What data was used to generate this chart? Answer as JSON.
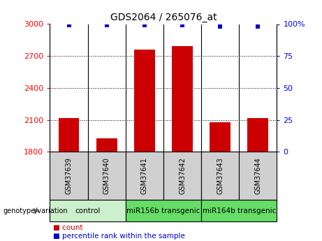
{
  "title": "GDS2064 / 265076_at",
  "samples": [
    "GSM37639",
    "GSM37640",
    "GSM37641",
    "GSM37642",
    "GSM37643",
    "GSM37644"
  ],
  "counts": [
    2120,
    1930,
    2760,
    2790,
    2080,
    2120
  ],
  "percentiles": [
    99,
    99,
    99,
    99,
    98,
    98
  ],
  "ymin": 1800,
  "ymax": 3000,
  "yticks_left": [
    1800,
    2100,
    2400,
    2700,
    3000
  ],
  "yticks_right_vals": [
    0,
    25,
    50,
    75,
    100
  ],
  "yticks_right_labels": [
    "0",
    "25",
    "50",
    "75",
    "100%"
  ],
  "bar_color": "#cc0000",
  "dot_color": "#0000cc",
  "groups": [
    {
      "label": "control",
      "start": 0,
      "end": 2,
      "color": "#ccf0cc"
    },
    {
      "label": "miR156b transgenic",
      "start": 2,
      "end": 4,
      "color": "#66dd66"
    },
    {
      "label": "miR164b transgenic",
      "start": 4,
      "end": 6,
      "color": "#66dd66"
    }
  ],
  "group_label": "genotype/variation",
  "legend_count_label": "count",
  "legend_pct_label": "percentile rank within the sample",
  "title_fontsize": 10,
  "tick_fontsize": 8,
  "sample_fontsize": 7,
  "group_fontsize": 7.5,
  "legend_fontsize": 7.5
}
